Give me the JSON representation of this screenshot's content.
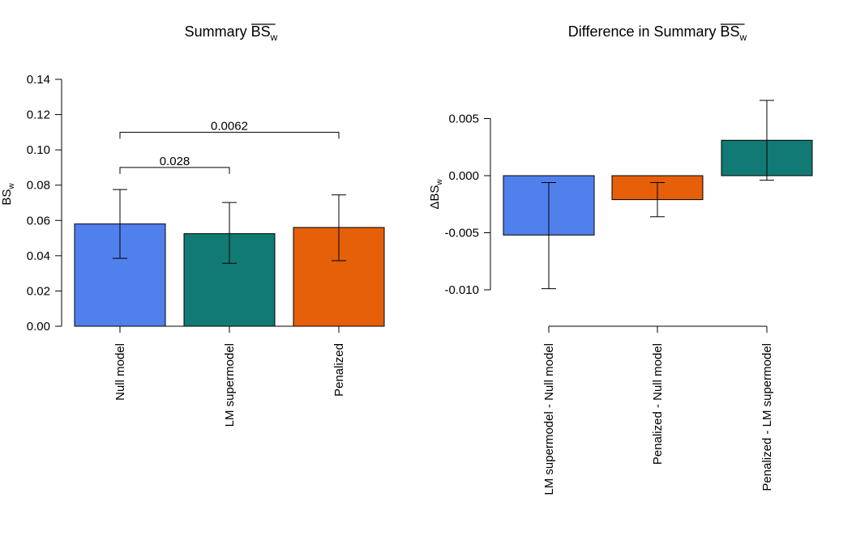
{
  "colors": {
    "blue": "#5080ec",
    "teal": "#117a74",
    "orange": "#e65f09"
  },
  "chart_data": [
    {
      "type": "bar",
      "title": {
        "main": "Summary ",
        "overlined": "BS",
        "subscript": "w"
      },
      "xlabel": "",
      "ylabel": {
        "main": "BS",
        "subscript": "w"
      },
      "ylim": [
        0,
        0.14
      ],
      "yticks": [
        "0.00",
        "0.02",
        "0.04",
        "0.06",
        "0.08",
        "0.10",
        "0.12",
        "0.14"
      ],
      "ytick_values": [
        0,
        0.02,
        0.04,
        0.06,
        0.08,
        0.1,
        0.12,
        0.14
      ],
      "categories": [
        "Null model",
        "LM supermodel",
        "Penalized"
      ],
      "values": [
        0.058,
        0.0525,
        0.056
      ],
      "ci_lower": [
        0.0385,
        0.0357,
        0.0372
      ],
      "ci_upper": [
        0.0775,
        0.0702,
        0.0745
      ],
      "bar_colors": [
        "blue",
        "teal",
        "orange"
      ],
      "annotations": [
        {
          "from": 0,
          "to": 1,
          "y": 0.09,
          "label": "0.028"
        },
        {
          "from": 0,
          "to": 2,
          "y": 0.11,
          "label": "0.0062"
        }
      ],
      "grid": false,
      "legend": "none"
    },
    {
      "type": "bar",
      "title": {
        "main": "Difference in Summary ",
        "overlined": "BS",
        "subscript": "w"
      },
      "xlabel": "",
      "ylabel": {
        "prefix": "Δ",
        "main": "BS",
        "subscript": "w"
      },
      "ylim": [
        -0.0132,
        0.0063
      ],
      "yticks": [
        "-0.010",
        "-0.005",
        "0.000",
        "0.005"
      ],
      "ytick_values": [
        -0.01,
        -0.005,
        0,
        0.005
      ],
      "categories": [
        "LM supermodel - Null model",
        "Penalized - Null model",
        "Penalized - LM supermodel"
      ],
      "values": [
        -0.0052,
        -0.0021,
        0.0031
      ],
      "ci_lower": [
        -0.0099,
        -0.0036,
        -0.0004
      ],
      "ci_upper": [
        -0.0006,
        -0.0006,
        0.0066
      ],
      "bar_colors": [
        "blue",
        "orange",
        "teal"
      ],
      "annotations": [],
      "grid": false,
      "legend": "none"
    }
  ]
}
